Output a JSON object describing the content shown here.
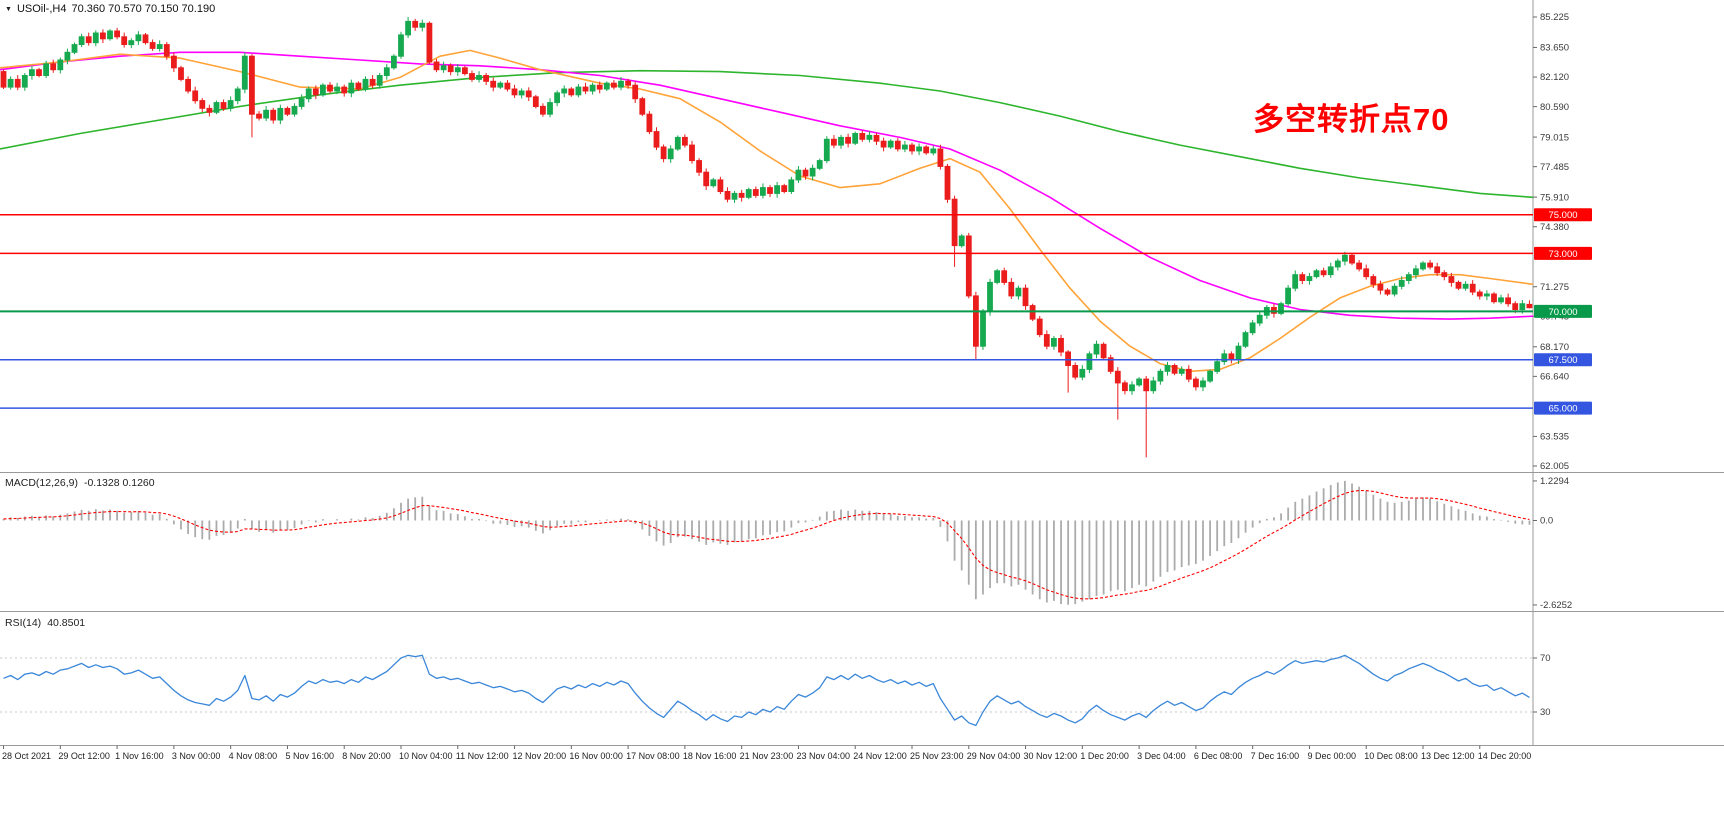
{
  "window": {
    "dropdown_icon": "▼",
    "symbol_label": "USOil-,H4",
    "ohlc_label": "70.360 70.570 70.150 70.190"
  },
  "annotation": {
    "text": "多空转折点70",
    "color": "#ff0000"
  },
  "indicators": {
    "macd_label": "MACD(12,26,9)",
    "macd_values": "-0.1328 0.1260",
    "rsi_label": "RSI(14)",
    "rsi_value": "40.8501"
  },
  "axes": {
    "price_ticks": [
      {
        "v": 85.225,
        "t": "85.225"
      },
      {
        "v": 83.65,
        "t": "83.650"
      },
      {
        "v": 82.12,
        "t": "82.120"
      },
      {
        "v": 80.59,
        "t": "80.590"
      },
      {
        "v": 79.015,
        "t": "79.015"
      },
      {
        "v": 77.485,
        "t": "77.485"
      },
      {
        "v": 75.91,
        "t": "75.910"
      },
      {
        "v": 74.38,
        "t": "74.380"
      },
      {
        "v": 71.275,
        "t": "71.275"
      },
      {
        "v": 69.745,
        "t": "69.745"
      },
      {
        "v": 68.17,
        "t": "68.170"
      },
      {
        "v": 66.64,
        "t": "66.640"
      },
      {
        "v": 63.535,
        "t": "63.535"
      },
      {
        "v": 62.005,
        "t": "62.005"
      }
    ],
    "macd_ticks": [
      {
        "v": 1.2294,
        "t": "1.2294"
      },
      {
        "v": 0,
        "t": "0.0"
      },
      {
        "v": -2.6252,
        "t": "-2.6252"
      }
    ],
    "rsi_ticks": [
      {
        "v": 70,
        "t": "70"
      },
      {
        "v": 30,
        "t": "30"
      }
    ],
    "dates": [
      "28 Oct 2021",
      "29 Oct 12:00",
      "1 Nov 16:00",
      "3 Nov 00:00",
      "4 Nov 08:00",
      "5 Nov 16:00",
      "8 Nov 20:00",
      "10 Nov 04:00",
      "11 Nov 12:00",
      "12 Nov 20:00",
      "16 Nov 00:00",
      "17 Nov 08:00",
      "18 Nov 16:00",
      "21 Nov 23:00",
      "23 Nov 04:00",
      "24 Nov 12:00",
      "25 Nov 23:00",
      "29 Nov 04:00",
      "30 Nov 12:00",
      "1 Dec 20:00",
      "3 Dec 04:00",
      "6 Dec 08:00",
      "7 Dec 16:00",
      "9 Dec 00:00",
      "10 Dec 08:00",
      "13 Dec 12:00",
      "14 Dec 20:00"
    ]
  },
  "hlines": [
    {
      "price": 75.0,
      "label": "75.000",
      "color": "#ff0000"
    },
    {
      "price": 73.0,
      "label": "73.000",
      "color": "#ff0000"
    },
    {
      "price": 70.0,
      "label": "70.000",
      "color": "#089a4a"
    },
    {
      "price": 67.5,
      "label": "67.500",
      "color": "#3355e0"
    },
    {
      "price": 65.0,
      "label": "65.000",
      "color": "#3355e0"
    }
  ],
  "colors": {
    "up": "#16a94f",
    "down": "#ea1c1c",
    "ma_slow": "#2db52d",
    "ma_mid": "#ff00ff",
    "ma_fast": "#ffa339",
    "macd_hist": "#ababab",
    "macd_signal": "#ff0000",
    "rsi": "#3a87d9",
    "axis_text": "#3a3a3a",
    "frame": "#9a9a9a",
    "level_dash": "#c8c8c8"
  },
  "chart_data": {
    "type": "candlestick",
    "symbol": "USOil-",
    "timeframe": "H4",
    "last_ohlc": {
      "open": 70.36,
      "high": 70.57,
      "low": 70.15,
      "close": 70.19
    },
    "price_range": [
      62.005,
      85.225
    ],
    "first_open": 82.4,
    "closes": [
      81.6,
      82.0,
      81.6,
      82.2,
      82.5,
      82.2,
      82.8,
      82.5,
      83.0,
      83.4,
      83.8,
      84.2,
      83.9,
      84.4,
      84.1,
      84.5,
      84.2,
      83.8,
      84.0,
      84.3,
      83.9,
      83.6,
      83.8,
      83.2,
      82.6,
      82.0,
      81.4,
      80.9,
      80.5,
      80.3,
      80.8,
      80.5,
      80.9,
      81.5,
      83.2,
      80.2,
      80.0,
      80.4,
      79.9,
      80.5,
      80.2,
      80.6,
      81.0,
      81.5,
      81.2,
      81.7,
      81.4,
      81.6,
      81.3,
      81.8,
      81.5,
      82.0,
      81.7,
      82.2,
      82.6,
      83.2,
      84.3,
      85.0,
      84.7,
      84.9,
      82.9,
      82.5,
      82.7,
      82.4,
      82.6,
      82.3,
      82.0,
      82.2,
      81.9,
      81.6,
      81.8,
      81.5,
      81.2,
      81.4,
      81.1,
      80.6,
      80.2,
      80.8,
      81.3,
      81.5,
      81.2,
      81.6,
      81.4,
      81.7,
      81.5,
      81.8,
      81.6,
      81.9,
      81.7,
      81.0,
      80.2,
      79.3,
      78.5,
      77.9,
      78.4,
      79.0,
      78.6,
      77.8,
      77.2,
      76.5,
      76.8,
      76.2,
      75.8,
      76.1,
      75.9,
      76.3,
      76.0,
      76.4,
      76.1,
      76.5,
      76.2,
      76.8,
      77.3,
      77.0,
      77.4,
      77.8,
      78.9,
      78.6,
      79.0,
      78.7,
      79.2,
      78.9,
      79.1,
      78.8,
      78.5,
      78.8,
      78.4,
      78.6,
      78.3,
      78.5,
      78.2,
      78.4,
      77.5,
      75.8,
      73.4,
      73.9,
      70.8,
      68.2,
      70.0,
      71.5,
      72.1,
      71.5,
      70.8,
      71.2,
      70.3,
      69.6,
      68.8,
      68.2,
      68.6,
      67.9,
      67.2,
      66.6,
      67.0,
      67.8,
      68.3,
      67.6,
      66.9,
      66.3,
      65.9,
      66.2,
      66.5,
      65.9,
      66.4,
      66.9,
      67.2,
      66.8,
      67.0,
      66.5,
      66.1,
      66.4,
      66.9,
      67.4,
      67.8,
      67.5,
      68.2,
      68.9,
      69.4,
      69.8,
      70.2,
      69.9,
      70.4,
      71.2,
      71.9,
      71.6,
      71.8,
      72.1,
      71.9,
      72.3,
      72.6,
      72.9,
      72.5,
      72.2,
      71.8,
      71.4,
      71.1,
      70.9,
      71.3,
      71.6,
      71.9,
      72.2,
      72.5,
      72.3,
      72.0,
      71.8,
      71.5,
      71.2,
      71.4,
      71.0,
      70.8,
      70.9,
      70.5,
      70.7,
      70.4,
      70.1,
      70.4,
      70.19
    ],
    "wick_overrides": {
      "35": {
        "l": 79.0
      },
      "57": {
        "h": 85.225
      },
      "134": {
        "l": 72.3
      },
      "137": {
        "l": 67.5
      },
      "150": {
        "l": 65.8
      },
      "157": {
        "l": 64.4
      },
      "161": {
        "l": 62.45
      },
      "189": {
        "h": 73.08
      },
      "215": {
        "o": 70.36,
        "h": 70.57,
        "l": 70.15,
        "c": 70.19
      }
    },
    "ma_green": [
      [
        0,
        78.4
      ],
      [
        80,
        79.2
      ],
      [
        160,
        79.9
      ],
      [
        240,
        80.6
      ],
      [
        320,
        81.2
      ],
      [
        400,
        81.7
      ],
      [
        480,
        82.1
      ],
      [
        560,
        82.35
      ],
      [
        640,
        82.45
      ],
      [
        720,
        82.4
      ],
      [
        800,
        82.2
      ],
      [
        880,
        81.8
      ],
      [
        940,
        81.4
      ],
      [
        1000,
        80.8
      ],
      [
        1060,
        80.1
      ],
      [
        1120,
        79.3
      ],
      [
        1180,
        78.6
      ],
      [
        1240,
        78.0
      ],
      [
        1300,
        77.4
      ],
      [
        1360,
        76.9
      ],
      [
        1420,
        76.5
      ],
      [
        1480,
        76.1
      ],
      [
        1533,
        75.9
      ]
    ],
    "ma_magenta": [
      [
        0,
        82.5
      ],
      [
        60,
        82.9
      ],
      [
        120,
        83.2
      ],
      [
        180,
        83.4
      ],
      [
        240,
        83.4
      ],
      [
        300,
        83.2
      ],
      [
        360,
        83.0
      ],
      [
        420,
        82.8
      ],
      [
        480,
        82.7
      ],
      [
        540,
        82.5
      ],
      [
        600,
        82.2
      ],
      [
        660,
        81.7
      ],
      [
        720,
        81.0
      ],
      [
        780,
        80.3
      ],
      [
        840,
        79.6
      ],
      [
        900,
        79.0
      ],
      [
        950,
        78.4
      ],
      [
        1000,
        77.3
      ],
      [
        1050,
        75.9
      ],
      [
        1100,
        74.3
      ],
      [
        1150,
        72.8
      ],
      [
        1200,
        71.6
      ],
      [
        1250,
        70.7
      ],
      [
        1300,
        70.1
      ],
      [
        1350,
        69.8
      ],
      [
        1400,
        69.65
      ],
      [
        1450,
        69.6
      ],
      [
        1490,
        69.65
      ],
      [
        1533,
        69.75
      ]
    ],
    "ma_orange": [
      [
        0,
        82.6
      ],
      [
        60,
        82.9
      ],
      [
        120,
        83.3
      ],
      [
        180,
        83.1
      ],
      [
        240,
        82.4
      ],
      [
        300,
        81.6
      ],
      [
        360,
        81.5
      ],
      [
        400,
        82.1
      ],
      [
        440,
        83.2
      ],
      [
        470,
        83.5
      ],
      [
        500,
        83.1
      ],
      [
        540,
        82.5
      ],
      [
        600,
        81.8
      ],
      [
        640,
        81.5
      ],
      [
        680,
        81.0
      ],
      [
        720,
        79.8
      ],
      [
        760,
        78.3
      ],
      [
        800,
        77.0
      ],
      [
        840,
        76.4
      ],
      [
        880,
        76.6
      ],
      [
        920,
        77.4
      ],
      [
        950,
        77.9
      ],
      [
        980,
        77.2
      ],
      [
        1010,
        75.3
      ],
      [
        1040,
        73.2
      ],
      [
        1070,
        71.2
      ],
      [
        1100,
        69.5
      ],
      [
        1130,
        68.2
      ],
      [
        1160,
        67.3
      ],
      [
        1190,
        66.9
      ],
      [
        1220,
        67.0
      ],
      [
        1250,
        67.6
      ],
      [
        1280,
        68.6
      ],
      [
        1310,
        69.7
      ],
      [
        1340,
        70.7
      ],
      [
        1370,
        71.3
      ],
      [
        1400,
        71.7
      ],
      [
        1430,
        71.9
      ],
      [
        1460,
        71.9
      ],
      [
        1490,
        71.7
      ],
      [
        1533,
        71.4
      ]
    ],
    "macd": [
      0.05,
      0.1,
      0.08,
      0.12,
      0.15,
      0.12,
      0.16,
      0.13,
      0.18,
      0.22,
      0.28,
      0.33,
      0.3,
      0.35,
      0.31,
      0.34,
      0.3,
      0.24,
      0.26,
      0.29,
      0.24,
      0.18,
      0.2,
      0.05,
      -0.12,
      -0.28,
      -0.42,
      -0.52,
      -0.58,
      -0.6,
      -0.48,
      -0.45,
      -0.38,
      -0.25,
      0.05,
      -0.25,
      -0.35,
      -0.3,
      -0.38,
      -0.28,
      -0.3,
      -0.24,
      -0.12,
      -0.02,
      -0.06,
      0.04,
      0.0,
      0.04,
      -0.01,
      0.06,
      0.03,
      0.1,
      0.08,
      0.15,
      0.24,
      0.38,
      0.55,
      0.68,
      0.72,
      0.74,
      0.45,
      0.32,
      0.3,
      0.22,
      0.2,
      0.13,
      0.05,
      0.05,
      -0.02,
      -0.1,
      -0.1,
      -0.14,
      -0.2,
      -0.18,
      -0.22,
      -0.32,
      -0.4,
      -0.3,
      -0.18,
      -0.1,
      -0.12,
      -0.05,
      -0.06,
      0.0,
      -0.02,
      0.03,
      0.02,
      0.06,
      0.04,
      -0.1,
      -0.28,
      -0.48,
      -0.65,
      -0.78,
      -0.7,
      -0.52,
      -0.5,
      -0.58,
      -0.66,
      -0.76,
      -0.68,
      -0.72,
      -0.76,
      -0.68,
      -0.66,
      -0.58,
      -0.55,
      -0.46,
      -0.44,
      -0.36,
      -0.34,
      -0.22,
      -0.08,
      -0.06,
      0.02,
      0.12,
      0.28,
      0.3,
      0.34,
      0.3,
      0.34,
      0.3,
      0.3,
      0.26,
      0.2,
      0.2,
      0.14,
      0.14,
      0.1,
      0.1,
      0.06,
      0.08,
      -0.2,
      -0.65,
      -1.25,
      -1.55,
      -2.0,
      -2.45,
      -2.3,
      -2.1,
      -1.95,
      -1.95,
      -2.05,
      -2.0,
      -2.15,
      -2.3,
      -2.45,
      -2.55,
      -2.5,
      -2.6,
      -2.62,
      -2.6,
      -2.52,
      -2.45,
      -2.35,
      -2.3,
      -2.2,
      -2.15,
      -2.2,
      -2.1,
      -2.0,
      -2.05,
      -1.9,
      -1.75,
      -1.6,
      -1.55,
      -1.45,
      -1.4,
      -1.35,
      -1.25,
      -1.1,
      -0.95,
      -0.8,
      -0.7,
      -0.55,
      -0.38,
      -0.22,
      -0.08,
      0.05,
      0.1,
      0.22,
      0.4,
      0.58,
      0.68,
      0.78,
      0.9,
      1.0,
      1.1,
      1.18,
      1.23,
      1.15,
      1.05,
      0.92,
      0.8,
      0.68,
      0.58,
      0.55,
      0.58,
      0.62,
      0.68,
      0.72,
      0.68,
      0.6,
      0.52,
      0.44,
      0.35,
      0.3,
      0.22,
      0.15,
      0.12,
      0.05,
      0.02,
      -0.04,
      -0.1,
      -0.12,
      -0.13
    ],
    "macd_range": [
      -2.6252,
      1.2294
    ],
    "macd_last": -0.1328,
    "macd_signal_last": 0.126,
    "rsi": [
      55,
      57,
      54,
      58,
      59,
      57,
      60,
      58,
      61,
      62,
      64,
      66,
      63,
      65,
      63,
      64,
      62,
      58,
      59,
      61,
      58,
      55,
      56,
      51,
      46,
      42,
      39,
      37,
      36,
      35,
      40,
      38,
      41,
      46,
      57,
      40,
      39,
      42,
      38,
      43,
      41,
      44,
      49,
      53,
      51,
      54,
      52,
      53,
      51,
      54,
      52,
      56,
      54,
      57,
      60,
      65,
      70,
      72,
      71,
      72,
      58,
      55,
      56,
      54,
      55,
      53,
      51,
      52,
      50,
      48,
      49,
      47,
      45,
      46,
      44,
      40,
      37,
      42,
      47,
      49,
      47,
      50,
      48,
      51,
      49,
      52,
      50,
      53,
      51,
      44,
      38,
      33,
      29,
      26,
      32,
      38,
      35,
      31,
      28,
      24,
      28,
      25,
      23,
      27,
      26,
      30,
      28,
      32,
      30,
      34,
      32,
      38,
      43,
      41,
      44,
      48,
      56,
      54,
      57,
      54,
      58,
      55,
      57,
      54,
      52,
      54,
      51,
      53,
      50,
      52,
      49,
      51,
      40,
      32,
      24,
      27,
      22,
      20,
      30,
      38,
      42,
      39,
      36,
      38,
      34,
      31,
      28,
      26,
      29,
      27,
      24,
      22,
      25,
      31,
      35,
      31,
      28,
      26,
      24,
      27,
      29,
      26,
      31,
      35,
      38,
      35,
      37,
      34,
      31,
      33,
      38,
      42,
      45,
      43,
      48,
      52,
      55,
      57,
      60,
      58,
      61,
      65,
      68,
      66,
      67,
      68,
      67,
      69,
      70,
      72,
      69,
      66,
      62,
      58,
      55,
      53,
      57,
      59,
      62,
      64,
      66,
      64,
      61,
      59,
      56,
      53,
      55,
      51,
      49,
      50,
      46,
      48,
      45,
      42,
      44,
      40.85
    ],
    "rsi_levels": [
      70,
      30
    ],
    "rsi_last": 40.8501
  }
}
